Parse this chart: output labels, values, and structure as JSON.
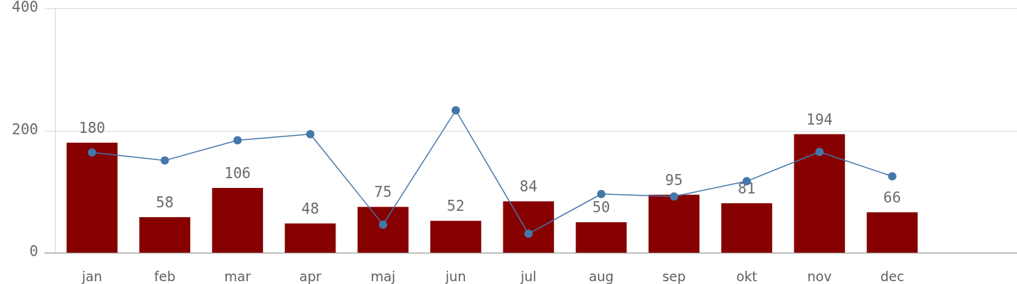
{
  "chart_data": {
    "type": "bar",
    "categories": [
      "jan",
      "feb",
      "mar",
      "apr",
      "maj",
      "jun",
      "jul",
      "aug",
      "sep",
      "okt",
      "nov",
      "dec"
    ],
    "series": [
      {
        "color": "#870000",
        "values": [
          180,
          58,
          106,
          48,
          75,
          52,
          84,
          50,
          95,
          81,
          194,
          66
        ],
        "value_labels": [
          "180",
          "58",
          "106",
          "48",
          "75",
          "52",
          "84",
          "50",
          "95",
          "81",
          "194",
          "66"
        ]
      },
      {
        "type": "line",
        "color": "#4477aa",
        "values": [
          164,
          151,
          184,
          194,
          46,
          233,
          31,
          96,
          92,
          117,
          165,
          125
        ]
      }
    ],
    "ylim": [
      0,
      400
    ],
    "yticks": [
      0,
      200,
      400
    ],
    "grid": "y",
    "marker": "circle"
  }
}
